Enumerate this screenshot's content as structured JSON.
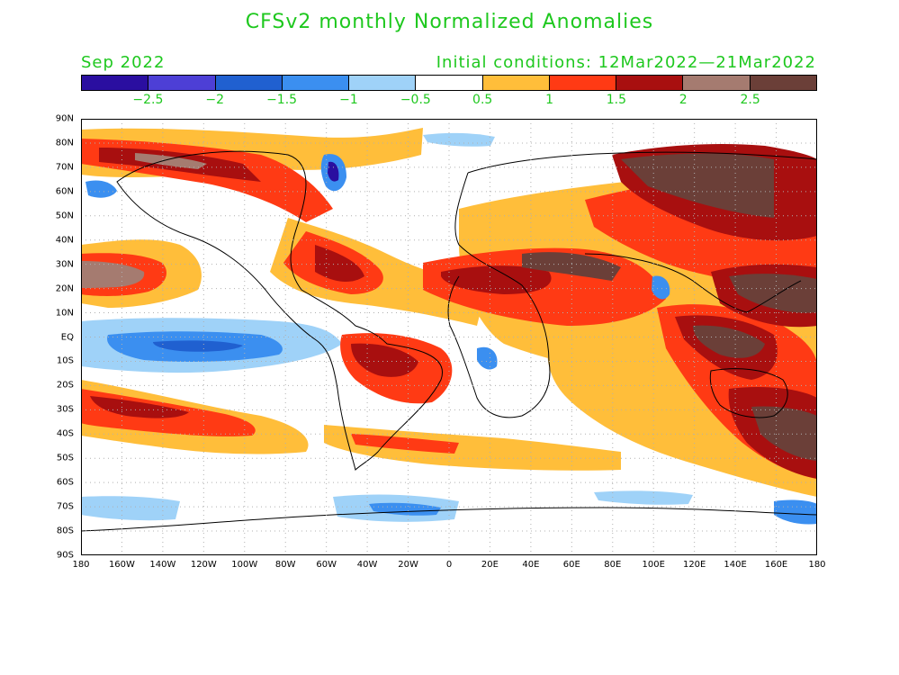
{
  "title": "CFSv2 monthly Normalized Anomalies",
  "month_label": "Sep 2022",
  "initial_conditions": "Initial conditions: 12Mar2022—21Mar2022",
  "colorbar": {
    "colors": [
      "#2a0ea0",
      "#4d3fd6",
      "#2060d0",
      "#3b8ff0",
      "#9fd2f8",
      "#ffffff",
      "#ffbe3a",
      "#ff3a14",
      "#a80f0f",
      "#a57b70",
      "#6b3f38"
    ],
    "labels": [
      "−2.5",
      "−2",
      "−1.5",
      "−1",
      "−0.5",
      "0.5",
      "1",
      "1.5",
      "2",
      "2.5"
    ]
  },
  "axes": {
    "lat_labels": [
      "90N",
      "80N",
      "70N",
      "60N",
      "50N",
      "40N",
      "30N",
      "20N",
      "10N",
      "EQ",
      "10S",
      "20S",
      "30S",
      "40S",
      "50S",
      "60S",
      "70S",
      "80S",
      "90S"
    ],
    "lon_labels": [
      "180",
      "160W",
      "140W",
      "120W",
      "100W",
      "80W",
      "60W",
      "40W",
      "20W",
      "0",
      "20E",
      "40E",
      "60E",
      "80E",
      "100E",
      "120E",
      "140E",
      "160E",
      "180"
    ]
  },
  "map": {
    "projection": "equirectangular",
    "lat_range": [
      -90,
      90
    ],
    "lon_range": [
      -180,
      180
    ],
    "grid": true
  }
}
